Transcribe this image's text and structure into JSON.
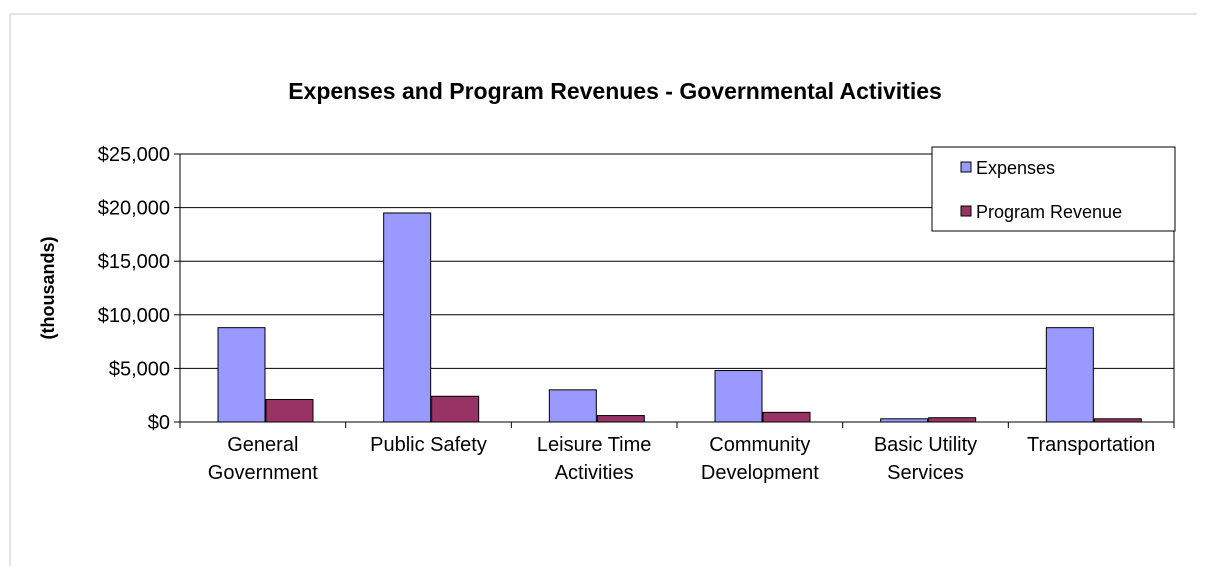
{
  "chart_data": {
    "type": "bar",
    "title": "Expenses and Program Revenues - Governmental Activities",
    "xlabel": "",
    "ylabel": "(thousands)",
    "ylim": [
      0,
      25000
    ],
    "yticks": [
      0,
      5000,
      10000,
      15000,
      20000,
      25000
    ],
    "ytick_labels": [
      "$0",
      "$5,000",
      "$10,000",
      "$15,000",
      "$20,000",
      "$25,000"
    ],
    "grid": true,
    "legend_position": "top-right",
    "categories": [
      [
        "General",
        "Government"
      ],
      [
        "Public Safety"
      ],
      [
        "Leisure Time",
        "Activities"
      ],
      [
        "Community",
        "Development"
      ],
      [
        "Basic Utility",
        "Services"
      ],
      [
        "Transportation"
      ]
    ],
    "series": [
      {
        "name": "Expenses",
        "color": "#9999ff",
        "values": [
          8800,
          19500,
          3000,
          4800,
          300,
          8800
        ]
      },
      {
        "name": "Program Revenue",
        "color": "#993366",
        "values": [
          2100,
          2400,
          600,
          900,
          400,
          300
        ]
      }
    ]
  }
}
